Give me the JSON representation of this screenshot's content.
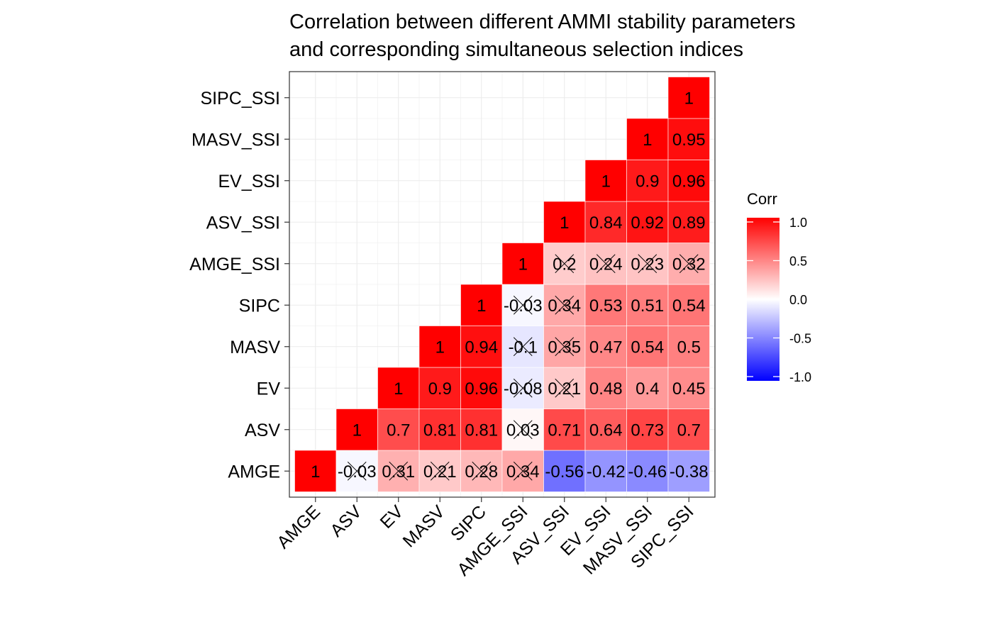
{
  "chart_data": {
    "type": "heatmap",
    "title_lines": [
      "Correlation between different AMMI stability parameters",
      "and corresponding simultaneous selection indices"
    ],
    "variables": [
      "AMGE",
      "ASV",
      "EV",
      "MASV",
      "SIPC",
      "AMGE_SSI",
      "ASV_SSI",
      "EV_SSI",
      "MASV_SSI",
      "SIPC_SSI"
    ],
    "cells": [
      {
        "x": "AMGE",
        "y": "AMGE",
        "value": 1,
        "label": "1",
        "crossed": false
      },
      {
        "x": "ASV",
        "y": "AMGE",
        "value": -0.03,
        "label": "-0.03",
        "crossed": true
      },
      {
        "x": "ASV",
        "y": "ASV",
        "value": 1,
        "label": "1",
        "crossed": false
      },
      {
        "x": "EV",
        "y": "AMGE",
        "value": 0.31,
        "label": "0.31",
        "crossed": true
      },
      {
        "x": "EV",
        "y": "ASV",
        "value": 0.7,
        "label": "0.7",
        "crossed": false
      },
      {
        "x": "EV",
        "y": "EV",
        "value": 1,
        "label": "1",
        "crossed": false
      },
      {
        "x": "MASV",
        "y": "AMGE",
        "value": 0.21,
        "label": "0.21",
        "crossed": true
      },
      {
        "x": "MASV",
        "y": "ASV",
        "value": 0.81,
        "label": "0.81",
        "crossed": false
      },
      {
        "x": "MASV",
        "y": "EV",
        "value": 0.9,
        "label": "0.9",
        "crossed": false
      },
      {
        "x": "MASV",
        "y": "MASV",
        "value": 1,
        "label": "1",
        "crossed": false
      },
      {
        "x": "SIPC",
        "y": "AMGE",
        "value": 0.28,
        "label": "0.28",
        "crossed": true
      },
      {
        "x": "SIPC",
        "y": "ASV",
        "value": 0.81,
        "label": "0.81",
        "crossed": false
      },
      {
        "x": "SIPC",
        "y": "EV",
        "value": 0.96,
        "label": "0.96",
        "crossed": false
      },
      {
        "x": "SIPC",
        "y": "MASV",
        "value": 0.94,
        "label": "0.94",
        "crossed": false
      },
      {
        "x": "SIPC",
        "y": "SIPC",
        "value": 1,
        "label": "1",
        "crossed": false
      },
      {
        "x": "AMGE_SSI",
        "y": "AMGE",
        "value": 0.34,
        "label": "0.34",
        "crossed": true
      },
      {
        "x": "AMGE_SSI",
        "y": "ASV",
        "value": 0.03,
        "label": "0.03",
        "crossed": true
      },
      {
        "x": "AMGE_SSI",
        "y": "EV",
        "value": -0.08,
        "label": "-0.08",
        "crossed": true
      },
      {
        "x": "AMGE_SSI",
        "y": "MASV",
        "value": -0.1,
        "label": "-0.1",
        "crossed": true
      },
      {
        "x": "AMGE_SSI",
        "y": "SIPC",
        "value": -0.03,
        "label": "-0.03",
        "crossed": true
      },
      {
        "x": "AMGE_SSI",
        "y": "AMGE_SSI",
        "value": 1,
        "label": "1",
        "crossed": false
      },
      {
        "x": "ASV_SSI",
        "y": "AMGE",
        "value": -0.56,
        "label": "-0.56",
        "crossed": false
      },
      {
        "x": "ASV_SSI",
        "y": "ASV",
        "value": 0.71,
        "label": "0.71",
        "crossed": false
      },
      {
        "x": "ASV_SSI",
        "y": "EV",
        "value": 0.21,
        "label": "0.21",
        "crossed": true
      },
      {
        "x": "ASV_SSI",
        "y": "MASV",
        "value": 0.35,
        "label": "0.35",
        "crossed": true
      },
      {
        "x": "ASV_SSI",
        "y": "SIPC",
        "value": 0.34,
        "label": "0.34",
        "crossed": true
      },
      {
        "x": "ASV_SSI",
        "y": "AMGE_SSI",
        "value": 0.2,
        "label": "0.2",
        "crossed": true
      },
      {
        "x": "ASV_SSI",
        "y": "ASV_SSI",
        "value": 1,
        "label": "1",
        "crossed": false
      },
      {
        "x": "EV_SSI",
        "y": "AMGE",
        "value": -0.42,
        "label": "-0.42",
        "crossed": false
      },
      {
        "x": "EV_SSI",
        "y": "ASV",
        "value": 0.64,
        "label": "0.64",
        "crossed": false
      },
      {
        "x": "EV_SSI",
        "y": "EV",
        "value": 0.48,
        "label": "0.48",
        "crossed": false
      },
      {
        "x": "EV_SSI",
        "y": "MASV",
        "value": 0.47,
        "label": "0.47",
        "crossed": false
      },
      {
        "x": "EV_SSI",
        "y": "SIPC",
        "value": 0.53,
        "label": "0.53",
        "crossed": false
      },
      {
        "x": "EV_SSI",
        "y": "AMGE_SSI",
        "value": 0.24,
        "label": "0.24",
        "crossed": true
      },
      {
        "x": "EV_SSI",
        "y": "ASV_SSI",
        "value": 0.84,
        "label": "0.84",
        "crossed": false
      },
      {
        "x": "EV_SSI",
        "y": "EV_SSI",
        "value": 1,
        "label": "1",
        "crossed": false
      },
      {
        "x": "MASV_SSI",
        "y": "AMGE",
        "value": -0.46,
        "label": "-0.46",
        "crossed": false
      },
      {
        "x": "MASV_SSI",
        "y": "ASV",
        "value": 0.73,
        "label": "0.73",
        "crossed": false
      },
      {
        "x": "MASV_SSI",
        "y": "EV",
        "value": 0.4,
        "label": "0.4",
        "crossed": false
      },
      {
        "x": "MASV_SSI",
        "y": "MASV",
        "value": 0.54,
        "label": "0.54",
        "crossed": false
      },
      {
        "x": "MASV_SSI",
        "y": "SIPC",
        "value": 0.51,
        "label": "0.51",
        "crossed": false
      },
      {
        "x": "MASV_SSI",
        "y": "AMGE_SSI",
        "value": 0.23,
        "label": "0.23",
        "crossed": true
      },
      {
        "x": "MASV_SSI",
        "y": "ASV_SSI",
        "value": 0.92,
        "label": "0.92",
        "crossed": false
      },
      {
        "x": "MASV_SSI",
        "y": "EV_SSI",
        "value": 0.9,
        "label": "0.9",
        "crossed": false
      },
      {
        "x": "MASV_SSI",
        "y": "MASV_SSI",
        "value": 1,
        "label": "1",
        "crossed": false
      },
      {
        "x": "SIPC_SSI",
        "y": "AMGE",
        "value": -0.38,
        "label": "-0.38",
        "crossed": false
      },
      {
        "x": "SIPC_SSI",
        "y": "ASV",
        "value": 0.7,
        "label": "0.7",
        "crossed": false
      },
      {
        "x": "SIPC_SSI",
        "y": "EV",
        "value": 0.45,
        "label": "0.45",
        "crossed": false
      },
      {
        "x": "SIPC_SSI",
        "y": "MASV",
        "value": 0.5,
        "label": "0.5",
        "crossed": false
      },
      {
        "x": "SIPC_SSI",
        "y": "SIPC",
        "value": 0.54,
        "label": "0.54",
        "crossed": false
      },
      {
        "x": "SIPC_SSI",
        "y": "AMGE_SSI",
        "value": 0.32,
        "label": "0.32",
        "crossed": true
      },
      {
        "x": "SIPC_SSI",
        "y": "ASV_SSI",
        "value": 0.89,
        "label": "0.89",
        "crossed": false
      },
      {
        "x": "SIPC_SSI",
        "y": "EV_SSI",
        "value": 0.96,
        "label": "0.96",
        "crossed": false
      },
      {
        "x": "SIPC_SSI",
        "y": "MASV_SSI",
        "value": 0.95,
        "label": "0.95",
        "crossed": false
      },
      {
        "x": "SIPC_SSI",
        "y": "SIPC_SSI",
        "value": 1,
        "label": "1",
        "crossed": false
      }
    ],
    "legend": {
      "title": "Corr",
      "placement": "right",
      "ticks": [
        {
          "value": 1.0,
          "label": "1.0"
        },
        {
          "value": 0.5,
          "label": "0.5"
        },
        {
          "value": 0.0,
          "label": "0.0"
        },
        {
          "value": -0.5,
          "label": "-0.5"
        },
        {
          "value": -1.0,
          "label": "-1.0"
        }
      ]
    },
    "color_scale": {
      "low": "#0000ff",
      "mid": "#ffffff",
      "high": "#ff0000",
      "limits": [
        -1,
        1
      ]
    },
    "grid": true,
    "panel_background": "#ffffff",
    "grid_color": "#ebebeb"
  }
}
